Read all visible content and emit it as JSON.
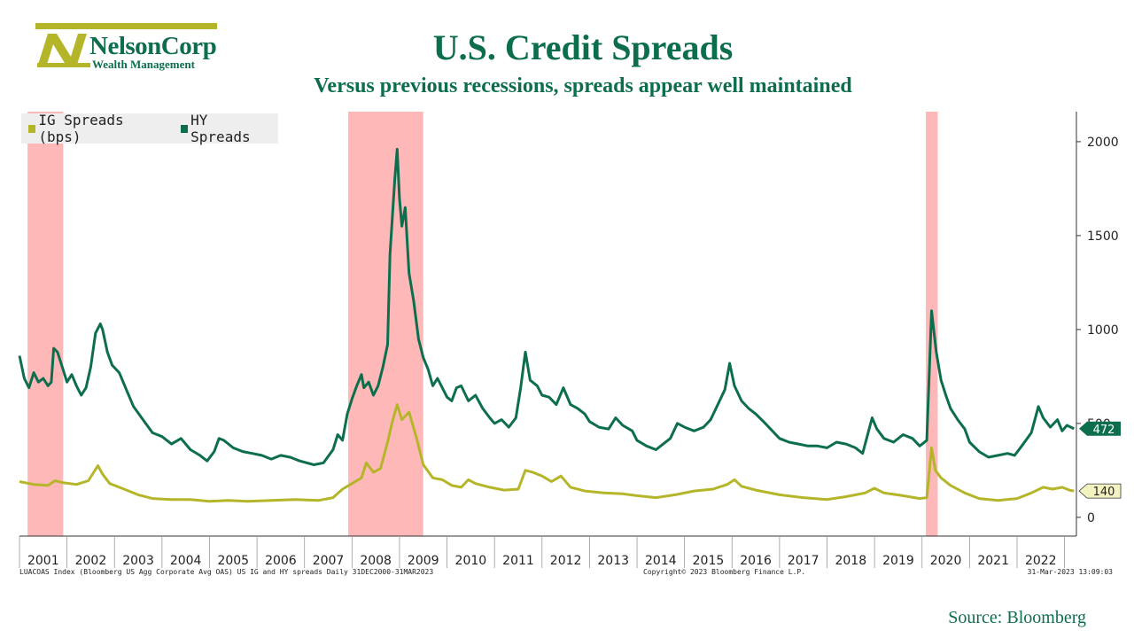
{
  "brand": {
    "name": "NelsonCorp",
    "subtitle": "Wealth Management",
    "logo_letter": "N",
    "colors": {
      "primary": "#0d6e4e",
      "accent": "#b5b52a"
    }
  },
  "header": {
    "title": "U.S. Credit Spreads",
    "subtitle": "Versus previous recessions, spreads appear well maintained"
  },
  "footer": {
    "left": "LUACOAS Index (Bloomberg US Agg Corporate Avg OAS) US IG and HY spreads  Daily 31DEC2000-31MAR2023",
    "middle": "Copyright© 2023 Bloomberg Finance L.P.",
    "right": "31-Mar-2023 13:09:03",
    "source": "Source: Bloomberg"
  },
  "chart_data": {
    "type": "line",
    "legend": [
      {
        "name": "IG Spreads (bps)",
        "color": "#b5b52a"
      },
      {
        "name": "HY Spreads",
        "color": "#0d6e4e"
      }
    ],
    "x_tick_labels": [
      "2001",
      "2002",
      "2003",
      "2004",
      "2005",
      "2006",
      "2007",
      "2008",
      "2009",
      "2010",
      "2011",
      "2012",
      "2013",
      "2014",
      "2015",
      "2016",
      "2017",
      "2018",
      "2019",
      "2020",
      "2021",
      "2022"
    ],
    "y_tick_labels": [
      "0",
      "500",
      "1000",
      "1500",
      "2000"
    ],
    "xlim": [
      2001.0,
      2023.25
    ],
    "ylim": [
      -100,
      2160
    ],
    "legend_position": "top-left",
    "recessions": [
      {
        "start": 2001.17,
        "end": 2001.92,
        "color": "#ffb8b8"
      },
      {
        "start": 2007.92,
        "end": 2009.5,
        "color": "#ffb8b8"
      },
      {
        "start": 2020.08,
        "end": 2020.33,
        "color": "#ffb8b8"
      }
    ],
    "last_values": [
      {
        "series": "HY Spreads",
        "label": "472",
        "value": 472
      },
      {
        "series": "IG Spreads (bps)",
        "label": "140",
        "value": 140
      }
    ],
    "series": [
      {
        "name": "HY Spreads",
        "color": "#0d6e4e",
        "points": [
          [
            2001.0,
            860
          ],
          [
            2001.1,
            740
          ],
          [
            2001.2,
            690
          ],
          [
            2001.3,
            770
          ],
          [
            2001.4,
            720
          ],
          [
            2001.5,
            740
          ],
          [
            2001.6,
            700
          ],
          [
            2001.67,
            720
          ],
          [
            2001.72,
            900
          ],
          [
            2001.8,
            880
          ],
          [
            2001.9,
            800
          ],
          [
            2002.0,
            720
          ],
          [
            2002.1,
            760
          ],
          [
            2002.2,
            700
          ],
          [
            2002.3,
            650
          ],
          [
            2002.4,
            690
          ],
          [
            2002.5,
            800
          ],
          [
            2002.6,
            980
          ],
          [
            2002.7,
            1030
          ],
          [
            2002.75,
            1000
          ],
          [
            2002.85,
            880
          ],
          [
            2002.95,
            810
          ],
          [
            2003.1,
            770
          ],
          [
            2003.25,
            680
          ],
          [
            2003.4,
            590
          ],
          [
            2003.6,
            520
          ],
          [
            2003.8,
            450
          ],
          [
            2004.0,
            430
          ],
          [
            2004.2,
            390
          ],
          [
            2004.4,
            420
          ],
          [
            2004.6,
            360
          ],
          [
            2004.8,
            330
          ],
          [
            2004.95,
            300
          ],
          [
            2005.1,
            350
          ],
          [
            2005.2,
            420
          ],
          [
            2005.3,
            410
          ],
          [
            2005.5,
            370
          ],
          [
            2005.7,
            350
          ],
          [
            2005.9,
            340
          ],
          [
            2006.1,
            330
          ],
          [
            2006.3,
            310
          ],
          [
            2006.5,
            330
          ],
          [
            2006.7,
            320
          ],
          [
            2006.9,
            300
          ],
          [
            2007.2,
            280
          ],
          [
            2007.4,
            290
          ],
          [
            2007.6,
            360
          ],
          [
            2007.7,
            440
          ],
          [
            2007.8,
            410
          ],
          [
            2007.9,
            550
          ],
          [
            2008.0,
            630
          ],
          [
            2008.1,
            700
          ],
          [
            2008.2,
            760
          ],
          [
            2008.25,
            690
          ],
          [
            2008.35,
            720
          ],
          [
            2008.45,
            650
          ],
          [
            2008.55,
            700
          ],
          [
            2008.65,
            800
          ],
          [
            2008.75,
            920
          ],
          [
            2008.8,
            1400
          ],
          [
            2008.85,
            1600
          ],
          [
            2008.9,
            1800
          ],
          [
            2008.95,
            1960
          ],
          [
            2009.0,
            1700
          ],
          [
            2009.05,
            1550
          ],
          [
            2009.12,
            1650
          ],
          [
            2009.2,
            1300
          ],
          [
            2009.3,
            1150
          ],
          [
            2009.4,
            950
          ],
          [
            2009.5,
            850
          ],
          [
            2009.6,
            790
          ],
          [
            2009.7,
            700
          ],
          [
            2009.8,
            740
          ],
          [
            2009.9,
            690
          ],
          [
            2010.0,
            640
          ],
          [
            2010.1,
            620
          ],
          [
            2010.2,
            690
          ],
          [
            2010.3,
            700
          ],
          [
            2010.45,
            620
          ],
          [
            2010.6,
            650
          ],
          [
            2010.75,
            580
          ],
          [
            2010.9,
            530
          ],
          [
            2011.0,
            500
          ],
          [
            2011.15,
            520
          ],
          [
            2011.3,
            480
          ],
          [
            2011.45,
            530
          ],
          [
            2011.55,
            690
          ],
          [
            2011.65,
            880
          ],
          [
            2011.75,
            730
          ],
          [
            2011.9,
            700
          ],
          [
            2012.0,
            650
          ],
          [
            2012.15,
            640
          ],
          [
            2012.3,
            600
          ],
          [
            2012.45,
            690
          ],
          [
            2012.6,
            600
          ],
          [
            2012.75,
            580
          ],
          [
            2012.9,
            550
          ],
          [
            2013.0,
            510
          ],
          [
            2013.2,
            480
          ],
          [
            2013.4,
            470
          ],
          [
            2013.55,
            530
          ],
          [
            2013.7,
            490
          ],
          [
            2013.9,
            460
          ],
          [
            2014.0,
            410
          ],
          [
            2014.2,
            380
          ],
          [
            2014.4,
            360
          ],
          [
            2014.55,
            390
          ],
          [
            2014.7,
            420
          ],
          [
            2014.85,
            500
          ],
          [
            2015.0,
            480
          ],
          [
            2015.2,
            460
          ],
          [
            2015.4,
            480
          ],
          [
            2015.55,
            520
          ],
          [
            2015.7,
            600
          ],
          [
            2015.85,
            680
          ],
          [
            2015.95,
            820
          ],
          [
            2016.05,
            700
          ],
          [
            2016.2,
            620
          ],
          [
            2016.35,
            580
          ],
          [
            2016.5,
            550
          ],
          [
            2016.7,
            500
          ],
          [
            2016.85,
            460
          ],
          [
            2017.0,
            420
          ],
          [
            2017.2,
            400
          ],
          [
            2017.4,
            390
          ],
          [
            2017.6,
            380
          ],
          [
            2017.8,
            380
          ],
          [
            2018.0,
            370
          ],
          [
            2018.2,
            400
          ],
          [
            2018.4,
            390
          ],
          [
            2018.6,
            370
          ],
          [
            2018.75,
            340
          ],
          [
            2018.95,
            530
          ],
          [
            2019.05,
            470
          ],
          [
            2019.2,
            420
          ],
          [
            2019.4,
            400
          ],
          [
            2019.6,
            440
          ],
          [
            2019.8,
            420
          ],
          [
            2019.95,
            380
          ],
          [
            2020.1,
            410
          ],
          [
            2020.2,
            1100
          ],
          [
            2020.3,
            880
          ],
          [
            2020.4,
            730
          ],
          [
            2020.5,
            650
          ],
          [
            2020.6,
            580
          ],
          [
            2020.75,
            520
          ],
          [
            2020.9,
            470
          ],
          [
            2021.0,
            400
          ],
          [
            2021.2,
            350
          ],
          [
            2021.4,
            320
          ],
          [
            2021.6,
            330
          ],
          [
            2021.8,
            340
          ],
          [
            2021.95,
            330
          ],
          [
            2022.1,
            380
          ],
          [
            2022.3,
            450
          ],
          [
            2022.45,
            590
          ],
          [
            2022.55,
            530
          ],
          [
            2022.7,
            480
          ],
          [
            2022.85,
            520
          ],
          [
            2022.95,
            460
          ],
          [
            2023.05,
            490
          ],
          [
            2023.2,
            472
          ]
        ]
      },
      {
        "name": "IG Spreads (bps)",
        "color": "#b5b52a",
        "points": [
          [
            2001.0,
            190
          ],
          [
            2001.3,
            175
          ],
          [
            2001.6,
            170
          ],
          [
            2001.75,
            195
          ],
          [
            2001.9,
            185
          ],
          [
            2002.2,
            175
          ],
          [
            2002.45,
            195
          ],
          [
            2002.65,
            275
          ],
          [
            2002.75,
            230
          ],
          [
            2002.9,
            180
          ],
          [
            2003.2,
            150
          ],
          [
            2003.5,
            120
          ],
          [
            2003.8,
            100
          ],
          [
            2004.2,
            95
          ],
          [
            2004.6,
            95
          ],
          [
            2005.0,
            85
          ],
          [
            2005.4,
            90
          ],
          [
            2005.8,
            85
          ],
          [
            2006.3,
            90
          ],
          [
            2006.8,
            95
          ],
          [
            2007.3,
            90
          ],
          [
            2007.6,
            105
          ],
          [
            2007.8,
            150
          ],
          [
            2008.0,
            180
          ],
          [
            2008.2,
            210
          ],
          [
            2008.3,
            290
          ],
          [
            2008.45,
            240
          ],
          [
            2008.6,
            260
          ],
          [
            2008.75,
            400
          ],
          [
            2008.85,
            510
          ],
          [
            2008.95,
            600
          ],
          [
            2009.05,
            520
          ],
          [
            2009.2,
            560
          ],
          [
            2009.35,
            430
          ],
          [
            2009.5,
            280
          ],
          [
            2009.7,
            210
          ],
          [
            2009.9,
            200
          ],
          [
            2010.1,
            170
          ],
          [
            2010.3,
            160
          ],
          [
            2010.45,
            200
          ],
          [
            2010.6,
            180
          ],
          [
            2010.9,
            160
          ],
          [
            2011.2,
            145
          ],
          [
            2011.5,
            150
          ],
          [
            2011.65,
            250
          ],
          [
            2011.8,
            240
          ],
          [
            2012.0,
            220
          ],
          [
            2012.2,
            190
          ],
          [
            2012.4,
            220
          ],
          [
            2012.6,
            160
          ],
          [
            2012.9,
            140
          ],
          [
            2013.3,
            130
          ],
          [
            2013.7,
            125
          ],
          [
            2014.0,
            115
          ],
          [
            2014.4,
            105
          ],
          [
            2014.8,
            120
          ],
          [
            2015.2,
            140
          ],
          [
            2015.6,
            150
          ],
          [
            2015.9,
            175
          ],
          [
            2016.05,
            200
          ],
          [
            2016.2,
            165
          ],
          [
            2016.5,
            145
          ],
          [
            2017.0,
            120
          ],
          [
            2017.5,
            105
          ],
          [
            2018.0,
            95
          ],
          [
            2018.4,
            110
          ],
          [
            2018.8,
            130
          ],
          [
            2019.0,
            155
          ],
          [
            2019.2,
            130
          ],
          [
            2019.6,
            115
          ],
          [
            2019.95,
            100
          ],
          [
            2020.1,
            105
          ],
          [
            2020.2,
            370
          ],
          [
            2020.28,
            250
          ],
          [
            2020.4,
            210
          ],
          [
            2020.6,
            170
          ],
          [
            2020.9,
            130
          ],
          [
            2021.2,
            100
          ],
          [
            2021.6,
            90
          ],
          [
            2022.0,
            100
          ],
          [
            2022.3,
            130
          ],
          [
            2022.55,
            160
          ],
          [
            2022.75,
            150
          ],
          [
            2022.95,
            160
          ],
          [
            2023.1,
            145
          ],
          [
            2023.2,
            140
          ]
        ]
      }
    ]
  }
}
